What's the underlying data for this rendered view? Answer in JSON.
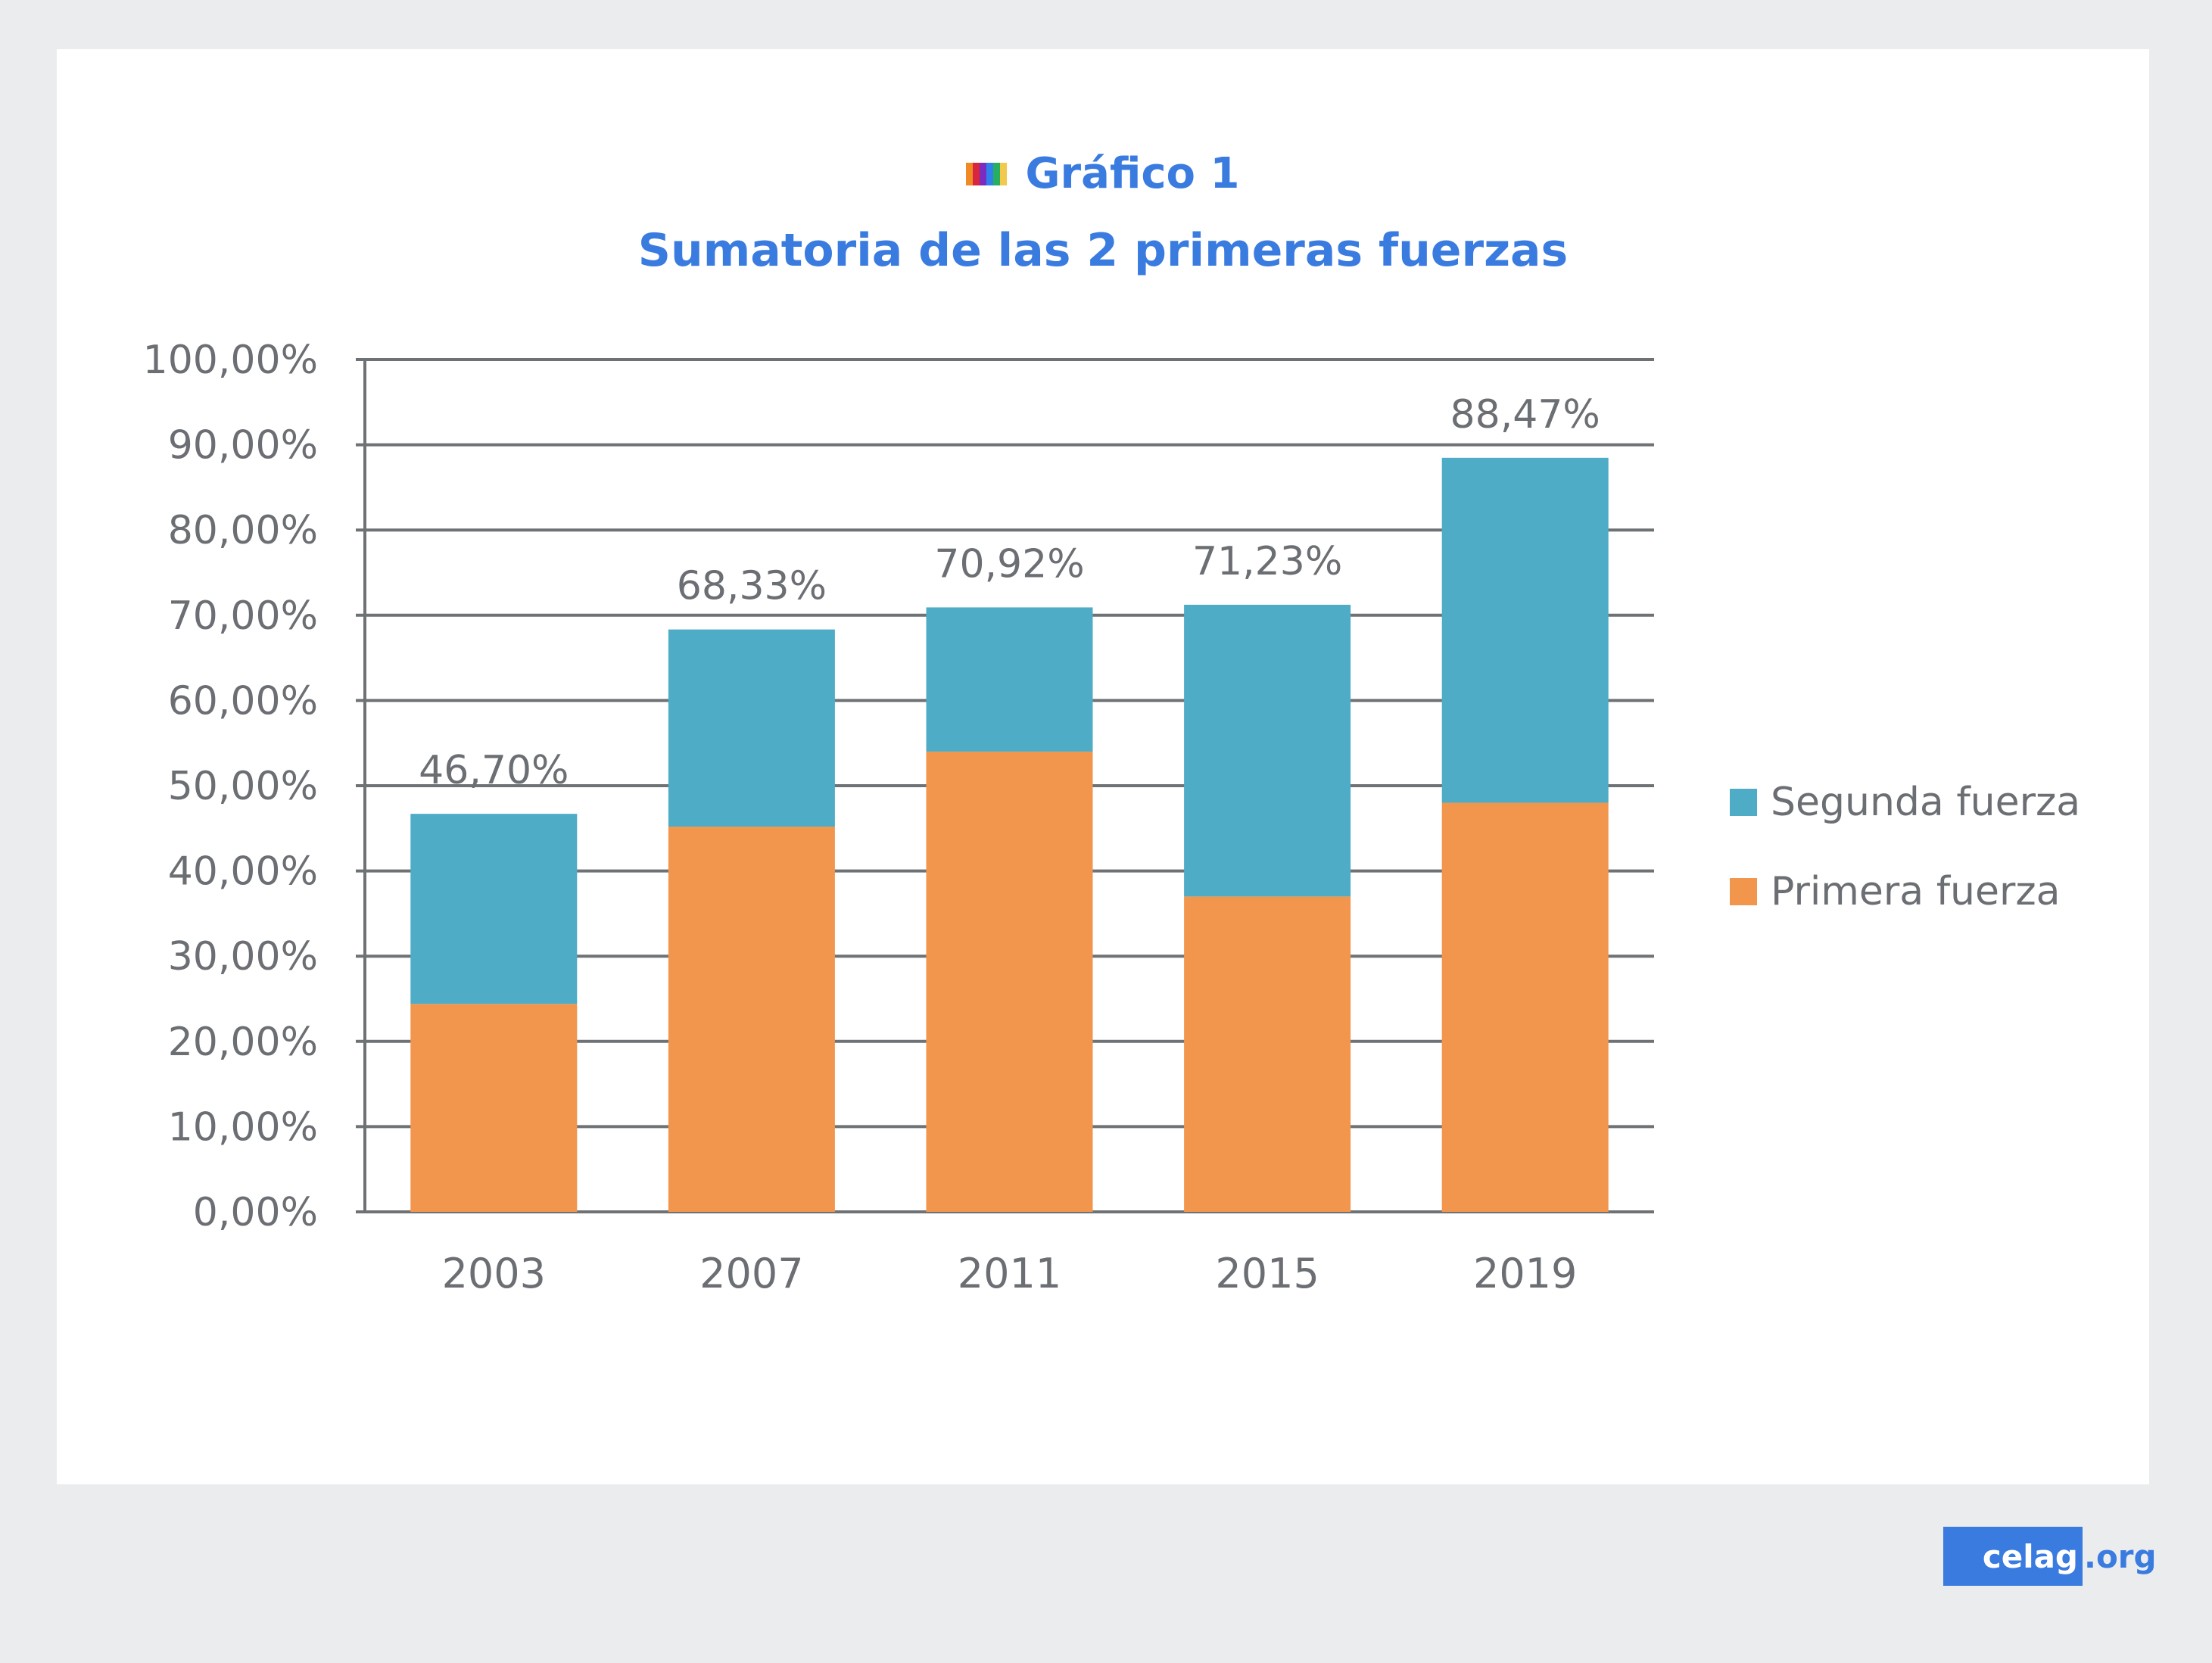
{
  "header": {
    "label": "Gráfico 1",
    "title": "Sumatoria de las 2 primeras fuerzas",
    "stripe_colors": [
      "#f08a24",
      "#d7263d",
      "#7b2cbf",
      "#2f80ed",
      "#27ae60",
      "#f2c94c"
    ]
  },
  "chart_data": {
    "type": "bar",
    "stacked": true,
    "categories": [
      "2003",
      "2007",
      "2011",
      "2015",
      "2019"
    ],
    "series": [
      {
        "name": "Primera fuerza",
        "values": [
          24.4,
          45.2,
          54.0,
          37.0,
          48.0
        ],
        "color": "#f2964e"
      },
      {
        "name": "Segunda fuerza",
        "values": [
          22.3,
          23.13,
          16.92,
          34.23,
          40.47
        ],
        "color": "#4facc7"
      }
    ],
    "totals": [
      46.7,
      68.33,
      70.92,
      71.23,
      88.47
    ],
    "total_labels": [
      "46,70%",
      "68,33%",
      "70,92%",
      "71,23%",
      "88,47%"
    ],
    "ylim": [
      0,
      100
    ],
    "yticks": [
      "0,00%",
      "10,00%",
      "20,00%",
      "30,00%",
      "40,00%",
      "50,00%",
      "60,00%",
      "70,00%",
      "80,00%",
      "90,00%",
      "100,00%"
    ],
    "grid": true,
    "legend_position": "right",
    "legend": [
      "Segunda fuerza",
      "Primera fuerza"
    ]
  },
  "brand": {
    "name": "celag",
    "tld": ".org"
  }
}
